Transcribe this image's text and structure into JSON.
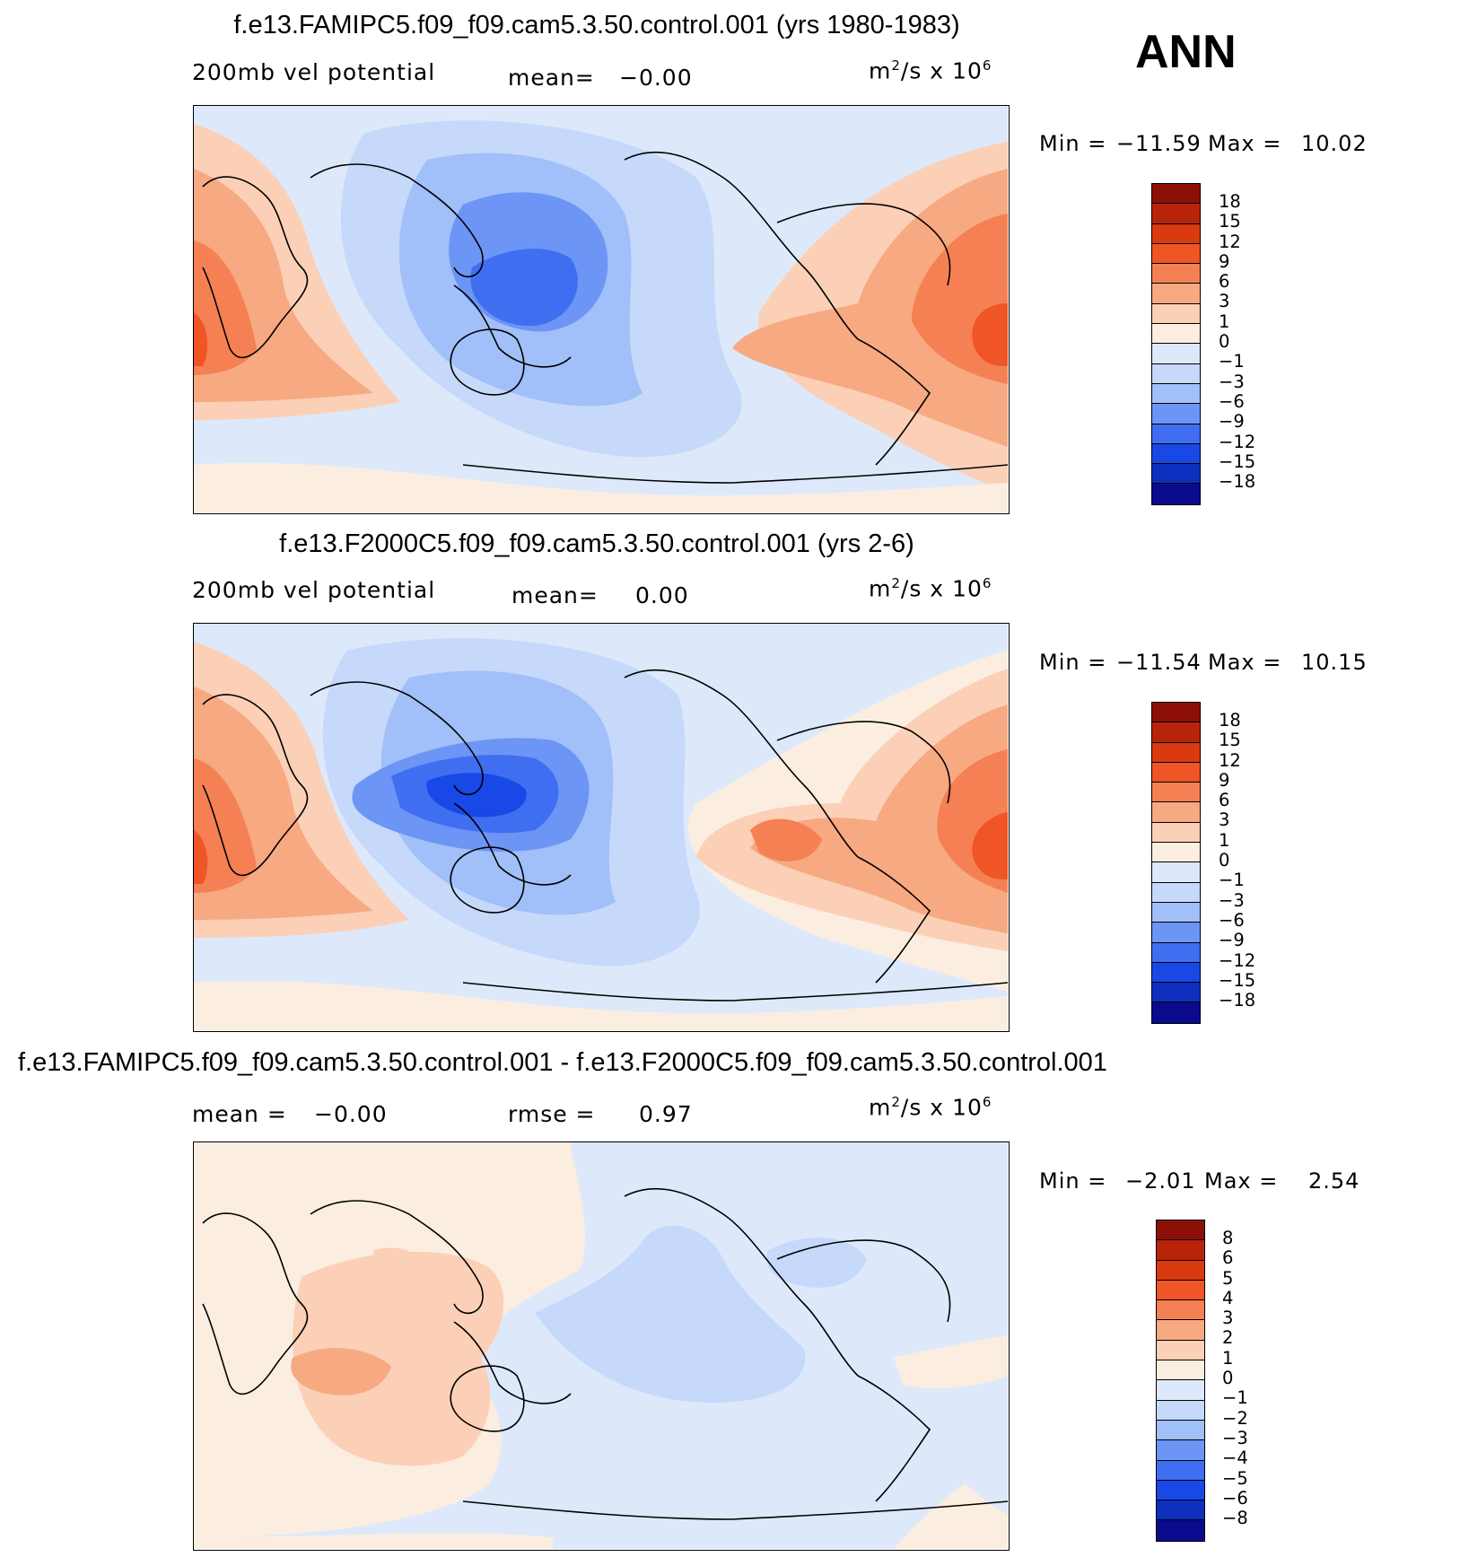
{
  "season": "ANN",
  "colors": {
    "abs": [
      "#0a0a8c",
      "#0c2fbf",
      "#1848e6",
      "#3f6ef0",
      "#6d95f5",
      "#a1bff8",
      "#c6d9fb",
      "#dde9fa",
      "#fbeee0",
      "#fbd0b7",
      "#f7a982",
      "#f58053",
      "#f05526",
      "#d93a10",
      "#b8240a",
      "#8e0f07"
    ],
    "diff": [
      "#0a0a8c",
      "#0c2fbf",
      "#1848e6",
      "#3f6ef0",
      "#6d95f5",
      "#a1bff8",
      "#c6d9fb",
      "#dde9fa",
      "#fbeee0",
      "#fbd0b7",
      "#f7a982",
      "#f58053",
      "#f05526",
      "#d93a10",
      "#b8240a",
      "#8e0f07"
    ]
  },
  "panels": [
    {
      "title": "f.e13.FAMIPC5.f09_f09.cam5.3.50.control.001 (yrs 1980-1983)",
      "variable": "200mb vel potential",
      "mean_label": "mean=",
      "mean_value": "−0.00",
      "units_base": "m",
      "units_exp": "2",
      "units_mid": "/s x 10",
      "units_exp2": "6",
      "min_label": "Min =",
      "min_value": "−11.59",
      "max_label": "Max =",
      "max_value": "10.02",
      "legend_labels": [
        "18",
        "15",
        "12",
        "9",
        "6",
        "3",
        "1",
        "0",
        "−1",
        "−3",
        "−6",
        "−9",
        "−12",
        "−15",
        "−18"
      ]
    },
    {
      "title": "f.e13.F2000C5.f09_f09.cam5.3.50.control.001 (yrs 2-6)",
      "variable": "200mb vel potential",
      "mean_label": "mean=",
      "mean_value": "0.00",
      "units_base": "m",
      "units_exp": "2",
      "units_mid": "/s x 10",
      "units_exp2": "6",
      "min_label": "Min =",
      "min_value": "−11.54",
      "max_label": "Max =",
      "max_value": "10.15",
      "legend_labels": [
        "18",
        "15",
        "12",
        "9",
        "6",
        "3",
        "1",
        "0",
        "−1",
        "−3",
        "−6",
        "−9",
        "−12",
        "−15",
        "−18"
      ]
    },
    {
      "title": "f.e13.FAMIPC5.f09_f09.cam5.3.50.control.001 - f.e13.F2000C5.f09_f09.cam5.3.50.control.001",
      "variable": "",
      "mean_label": "mean =",
      "mean_value": "−0.00",
      "rmse_label": "rmse =",
      "rmse_value": "0.97",
      "units_base": "m",
      "units_exp": "2",
      "units_mid": "/s x 10",
      "units_exp2": "6",
      "min_label": "Min =",
      "min_value": "−2.01",
      "max_label": "Max =",
      "max_value": "2.54",
      "legend_labels": [
        "8",
        "6",
        "5",
        "4",
        "3",
        "2",
        "1",
        "0",
        "−1",
        "−2",
        "−3",
        "−4",
        "−5",
        "−6",
        "−8"
      ]
    }
  ]
}
